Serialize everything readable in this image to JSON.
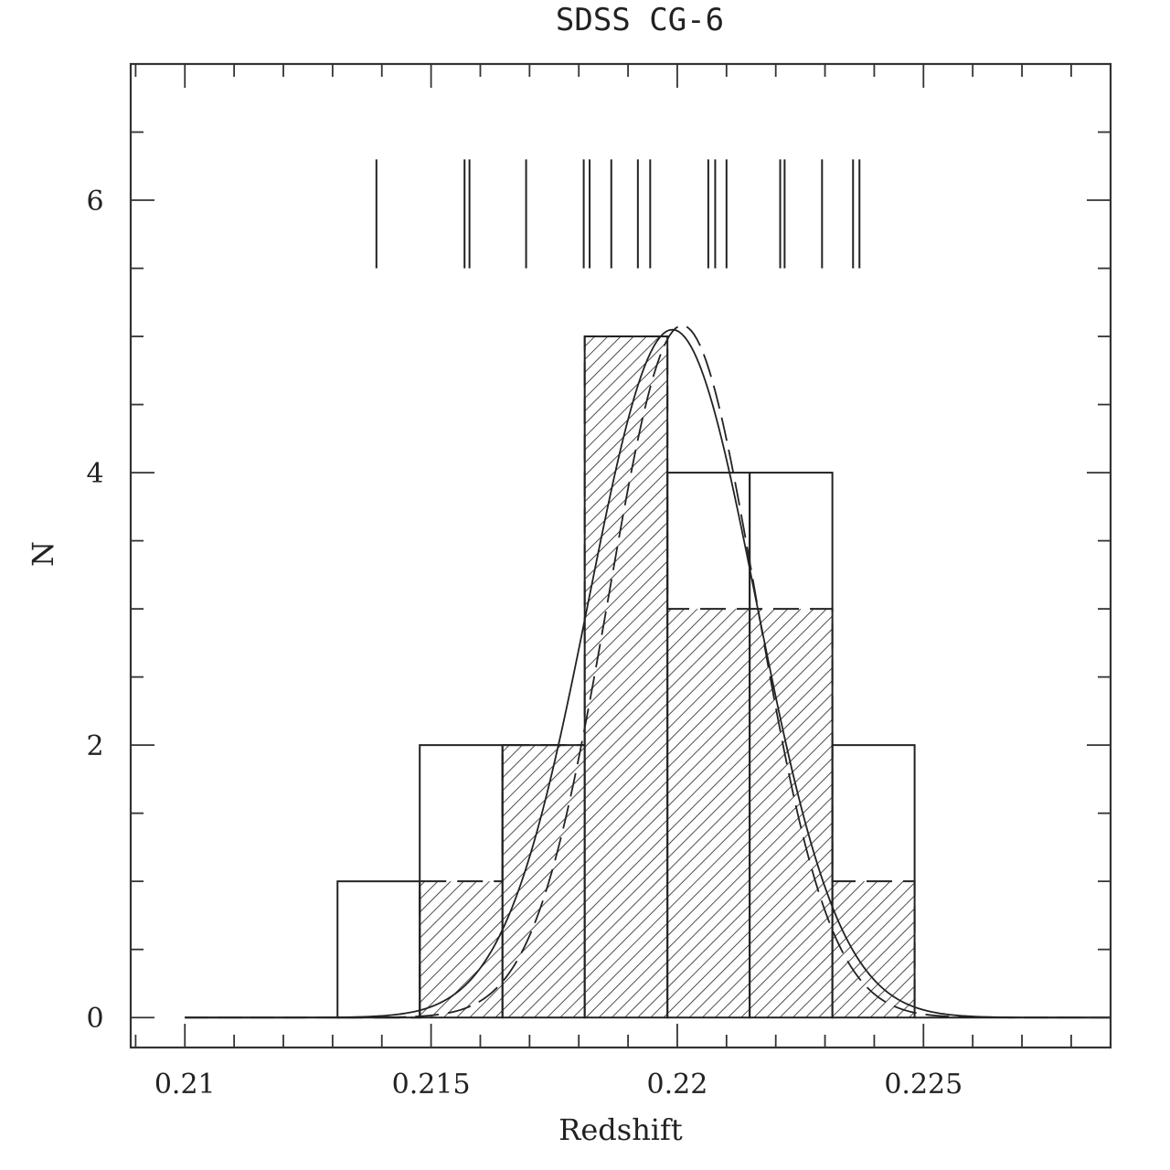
{
  "chart_data": {
    "type": "bar",
    "title": "SDSS CG-6",
    "xlabel": "Redshift",
    "ylabel": "N",
    "xlim": [
      0.2089,
      0.2288
    ],
    "ylim": [
      -0.22,
      7.0
    ],
    "x_ticks": [
      {
        "value": 0.21,
        "label": "0.21"
      },
      {
        "value": 0.215,
        "label": "0.215"
      },
      {
        "value": 0.22,
        "label": "0.22"
      },
      {
        "value": 0.225,
        "label": "0.225"
      }
    ],
    "y_ticks": [
      {
        "value": 0,
        "label": "0"
      },
      {
        "value": 2,
        "label": "2"
      },
      {
        "value": 4,
        "label": "4"
      },
      {
        "value": 6,
        "label": "6"
      }
    ],
    "bin_edges": [
      0.2131,
      0.21477,
      0.21645,
      0.21812,
      0.2198,
      0.22147,
      0.22315,
      0.22482
    ],
    "series": [
      {
        "style": "open histogram",
        "values": [
          1,
          2,
          2,
          5,
          4,
          4,
          2
        ]
      },
      {
        "style": "hatched histogram",
        "values": [
          0,
          1,
          2,
          5,
          3,
          3,
          1
        ]
      }
    ],
    "fits": [
      {
        "style": "solid gaussian",
        "mean": 0.2199,
        "sigma": 0.0017,
        "peak": 5.05
      },
      {
        "style": "dashed gaussian",
        "mean": 0.2201,
        "sigma": 0.0015,
        "peak": 5.08
      }
    ],
    "fit_x_range": [
      0.21,
      0.2288
    ],
    "individual_redshifts": [
      0.21389,
      0.21568,
      0.21578,
      0.21693,
      0.2181,
      0.21822,
      0.21866,
      0.2192,
      0.21945,
      0.22063,
      0.22077,
      0.221,
      0.22209,
      0.22218,
      0.22294,
      0.22357,
      0.2237
    ],
    "rug_range": [
      5.5,
      6.3
    ],
    "grid": false
  }
}
